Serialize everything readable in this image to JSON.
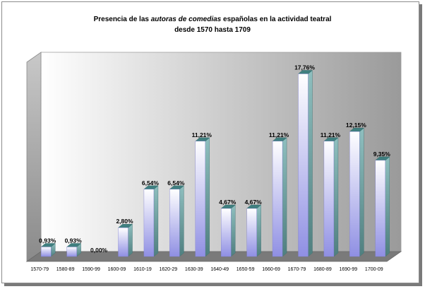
{
  "chart_data": {
    "type": "bar",
    "title_pre": "Presencia de las ",
    "title_italic": "autoras de comedias",
    "title_post": " españolas en la actividad teatral",
    "title_line2": "desde 1570 hasta 1709",
    "categories": [
      "1570-79",
      "1580-89",
      "1590-99",
      "1600-09",
      "1610-19",
      "1620-29",
      "1630-39",
      "1640-49",
      "1650-59",
      "1660-69",
      "1670-79",
      "1680-89",
      "1690-99",
      "1700-09"
    ],
    "values": [
      0.93,
      0.93,
      0.0,
      2.8,
      6.54,
      6.54,
      11.21,
      4.67,
      4.67,
      11.21,
      17.76,
      11.21,
      12.15,
      9.35
    ],
    "value_labels": [
      "0,93%",
      "0,93%",
      "0,00%",
      "2,80%",
      "6,54%",
      "6,54%",
      "11,21%",
      "4,67%",
      "4,67%",
      "11,21%",
      "17,76%",
      "11,21%",
      "12,15%",
      "9,35%"
    ],
    "ylim": [
      0,
      18
    ],
    "grid": false,
    "legend": "none",
    "colors": {
      "bar_light": "#ffffff",
      "bar_dark": "#8f8fe3",
      "bar_side": "#5a8f8f",
      "bar_top": "#3f7f7f",
      "wall_light": "#ffffff",
      "wall_dark": "#9a9a9a",
      "floor": "#7a7a7a"
    }
  }
}
